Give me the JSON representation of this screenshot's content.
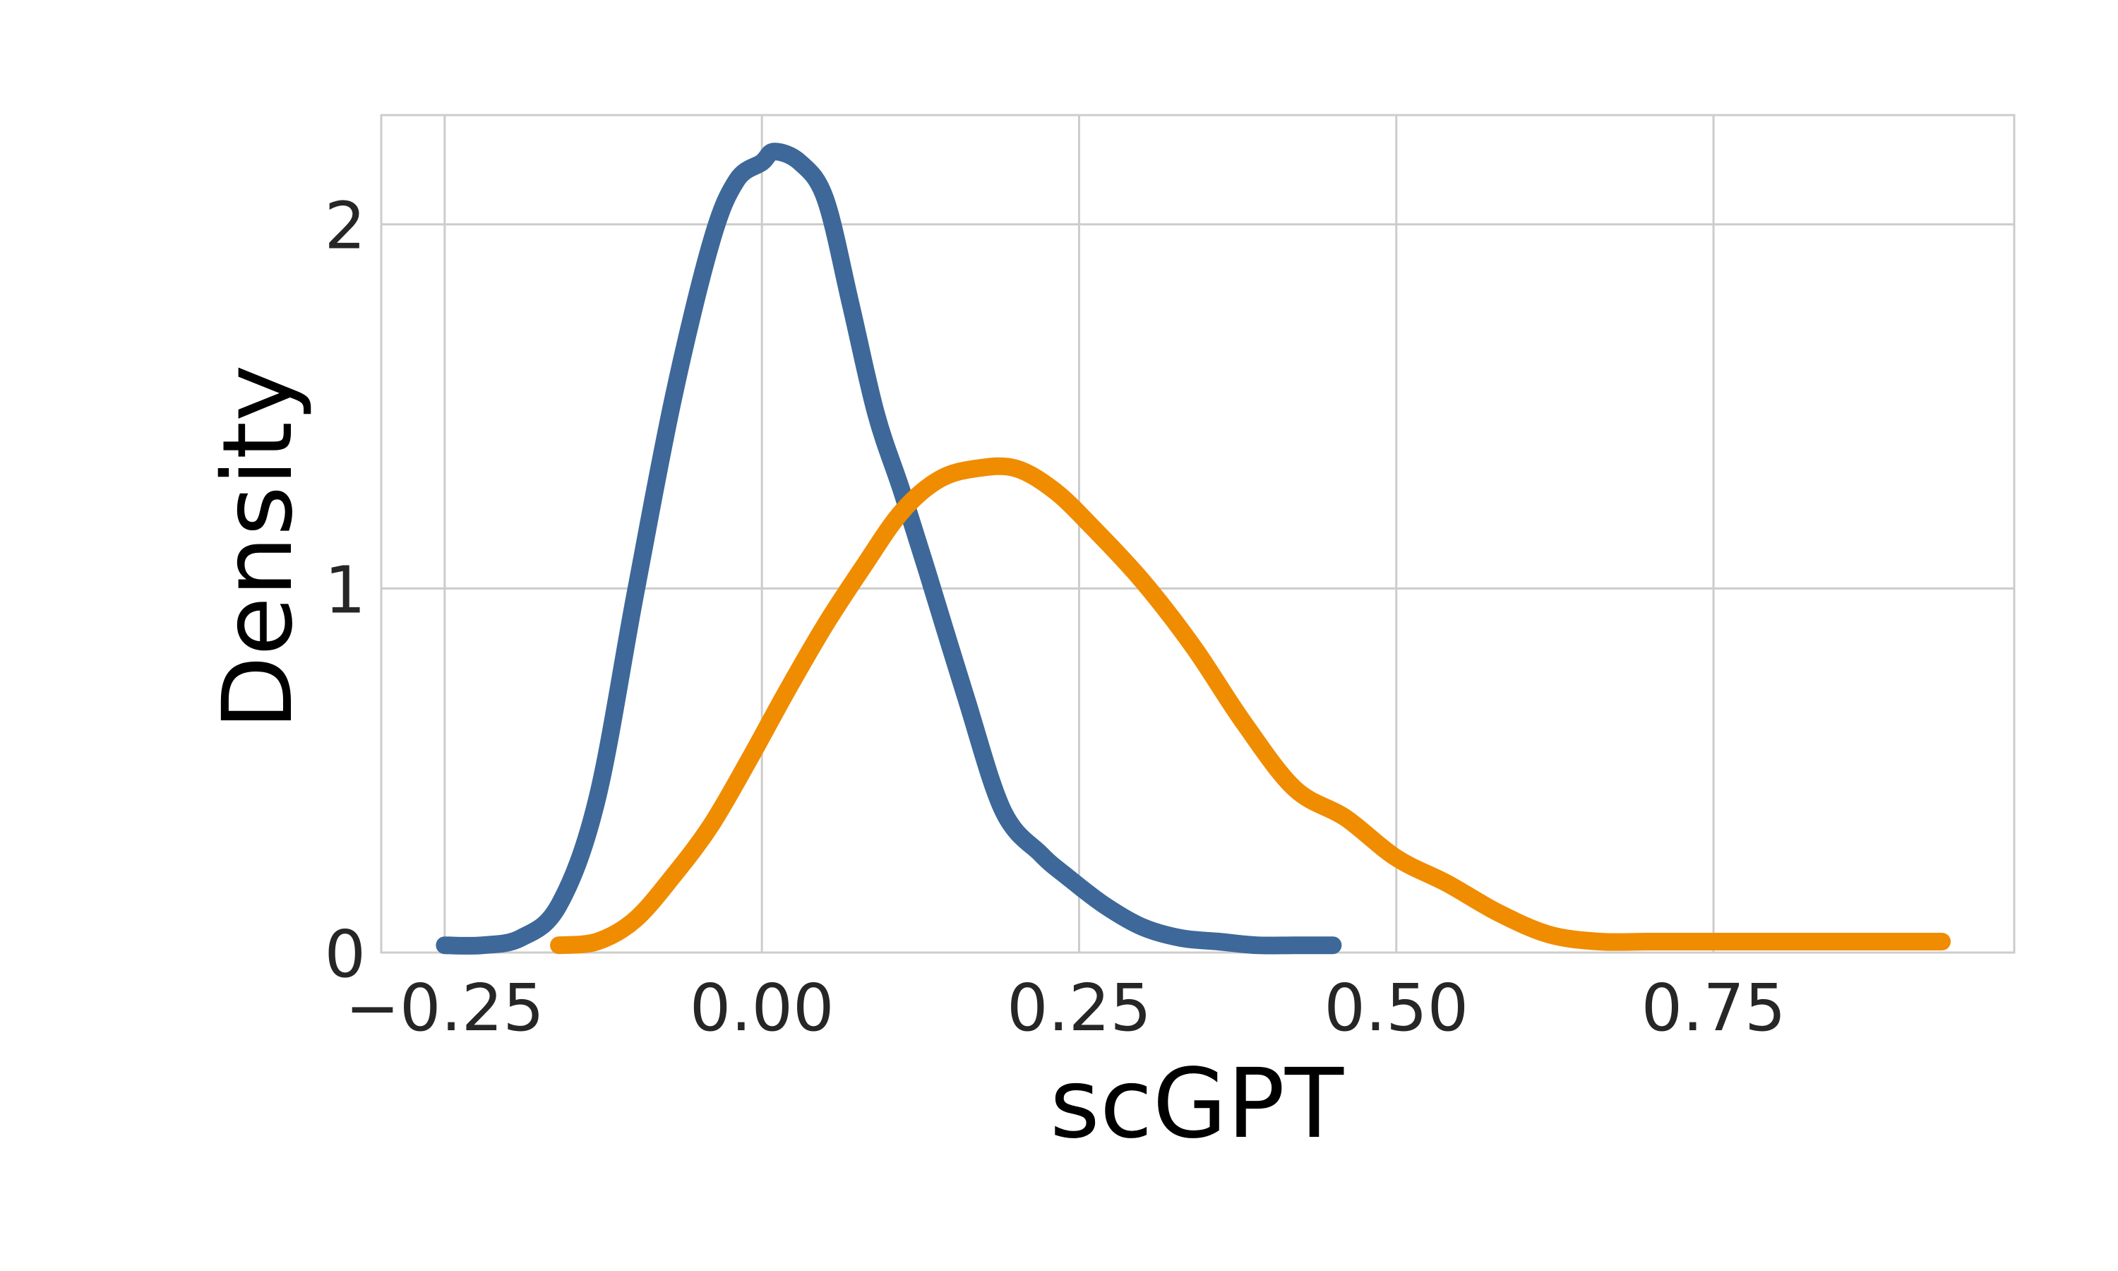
{
  "chart_data": {
    "type": "line",
    "title": "",
    "xlabel": "scGPT",
    "ylabel": "Density",
    "xlim": [
      -0.3,
      0.987
    ],
    "ylim": [
      0,
      2.3
    ],
    "grid": true,
    "legend": "none",
    "x_ticks": [
      -0.25,
      0.0,
      0.25,
      0.5,
      0.75
    ],
    "x_tick_labels": [
      "−0.25",
      "0.00",
      "0.25",
      "0.50",
      "0.75"
    ],
    "y_ticks": [
      0,
      1,
      2
    ],
    "y_tick_labels": [
      "0",
      "1",
      "2"
    ],
    "series": [
      {
        "color": "#3d6899",
        "x": [
          -0.25,
          -0.22,
          -0.19,
          -0.16,
          -0.13,
          -0.1,
          -0.07,
          -0.04,
          -0.02,
          0.0,
          0.01,
          0.03,
          0.05,
          0.07,
          0.09,
          0.11,
          0.13,
          0.16,
          0.19,
          0.22,
          0.24,
          0.27,
          0.3,
          0.33,
          0.36,
          0.39,
          0.42,
          0.45
        ],
        "values": [
          0.02,
          0.02,
          0.04,
          0.13,
          0.42,
          0.98,
          1.52,
          1.95,
          2.12,
          2.17,
          2.2,
          2.17,
          2.07,
          1.78,
          1.48,
          1.27,
          1.05,
          0.71,
          0.39,
          0.27,
          0.21,
          0.13,
          0.07,
          0.04,
          0.03,
          0.02,
          0.02,
          0.02
        ]
      },
      {
        "color": "#f08c00",
        "x": [
          -0.16,
          -0.13,
          -0.1,
          -0.07,
          -0.04,
          -0.01,
          0.02,
          0.05,
          0.08,
          0.11,
          0.14,
          0.17,
          0.2,
          0.23,
          0.26,
          0.3,
          0.34,
          0.38,
          0.42,
          0.46,
          0.5,
          0.54,
          0.58,
          0.62,
          0.66,
          0.7,
          0.75,
          0.8,
          0.87,
          0.93
        ],
        "values": [
          0.02,
          0.03,
          0.09,
          0.21,
          0.35,
          0.53,
          0.72,
          0.9,
          1.06,
          1.21,
          1.3,
          1.33,
          1.33,
          1.27,
          1.17,
          1.02,
          0.84,
          0.63,
          0.45,
          0.37,
          0.26,
          0.19,
          0.11,
          0.05,
          0.03,
          0.03,
          0.03,
          0.03,
          0.03,
          0.03
        ]
      }
    ]
  }
}
